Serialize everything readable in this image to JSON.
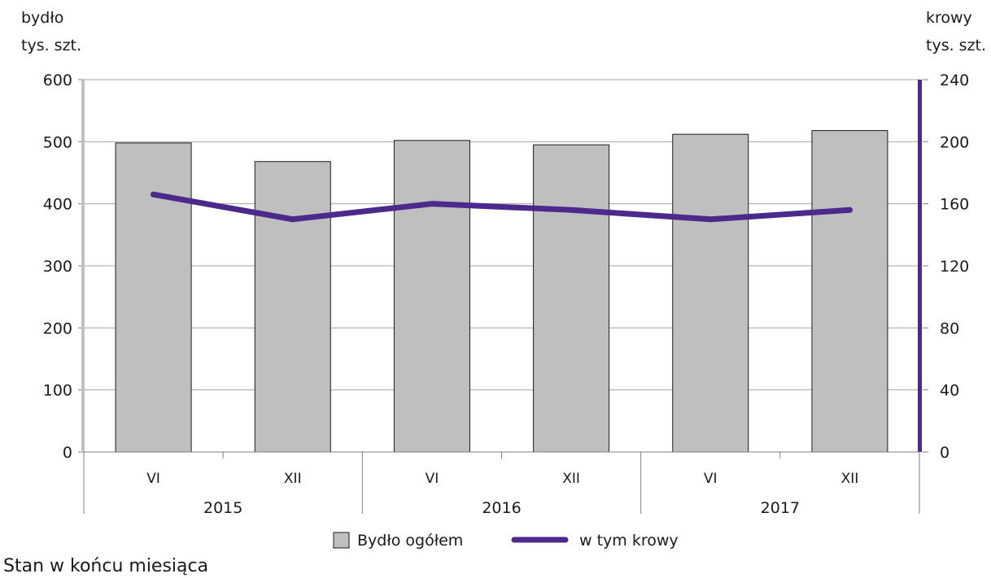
{
  "chart_data": {
    "type": "bar",
    "left_axis_title": [
      "bydło",
      "tys. szt."
    ],
    "right_axis_title": [
      "krowy",
      "tys. szt."
    ],
    "categories": [
      "VI",
      "XII",
      "VI",
      "XII",
      "VI",
      "XII"
    ],
    "year_groups": [
      {
        "label": "2015",
        "span": 2
      },
      {
        "label": "2016",
        "span": 2
      },
      {
        "label": "2017",
        "span": 2
      }
    ],
    "ylim_left": [
      0,
      600
    ],
    "yticks_left": [
      0,
      100,
      200,
      300,
      400,
      500,
      600
    ],
    "ylim_right": [
      0,
      240
    ],
    "yticks_right": [
      0,
      40,
      80,
      120,
      160,
      200,
      240
    ],
    "grid": true,
    "legend_position": "bottom",
    "series": [
      {
        "name": "Bydło ogółem",
        "type": "bar",
        "axis": "left",
        "color": "#bfbfbf",
        "values": [
          498,
          468,
          502,
          495,
          512,
          518
        ]
      },
      {
        "name": "w tym krowy",
        "type": "line",
        "axis": "right",
        "color": "#4b2a8c",
        "values": [
          166,
          150,
          160,
          156,
          150,
          156
        ]
      }
    ],
    "left_axis_bar_color": "#c0c0c0",
    "right_axis_bar_color": "#4b2a8c",
    "footnote": "Stan w końcu miesiąca"
  }
}
